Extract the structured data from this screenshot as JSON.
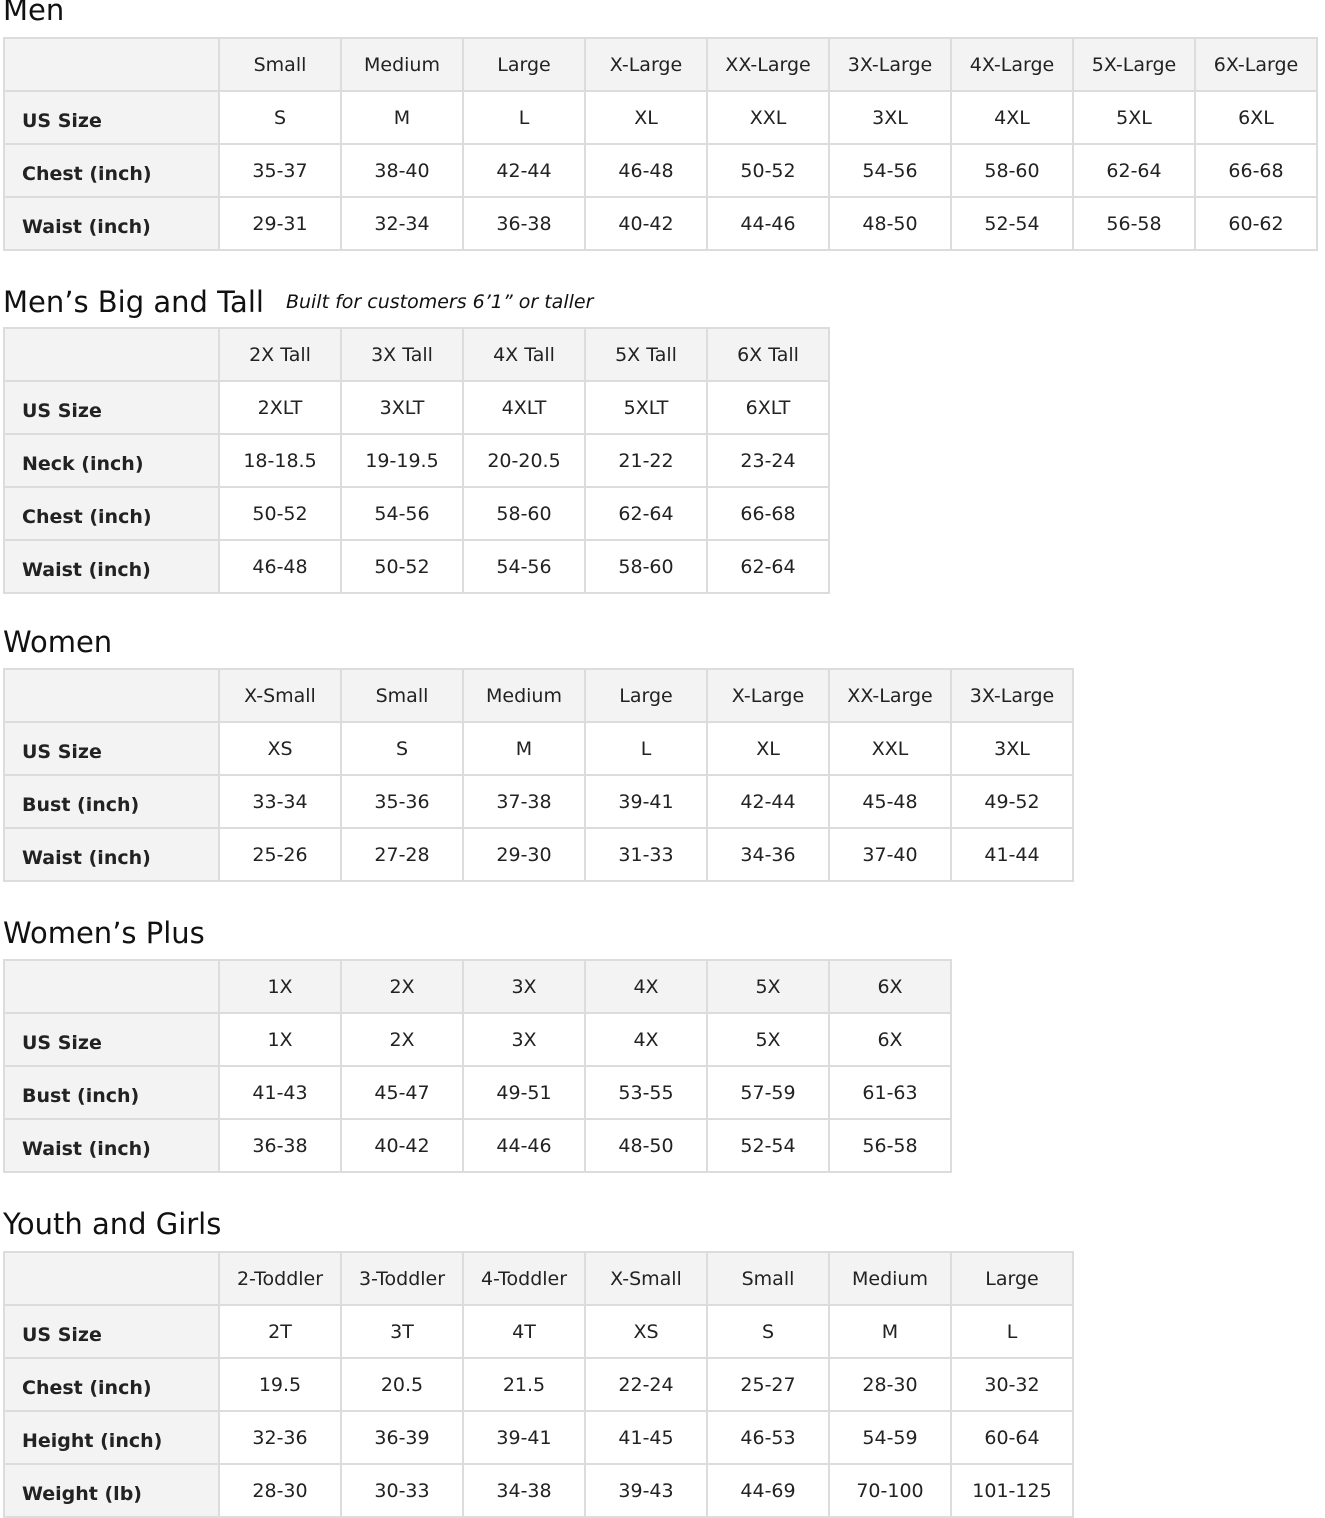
{
  "sections": [
    {
      "id": "men",
      "title": "Men",
      "subtitle": "",
      "columns": [
        "Small",
        "Medium",
        "Large",
        "X-Large",
        "XX-Large",
        "3X-Large",
        "4X-Large",
        "5X-Large",
        "6X-Large"
      ],
      "rows": [
        {
          "label": "US Size",
          "values": [
            "S",
            "M",
            "L",
            "XL",
            "XXL",
            "3XL",
            "4XL",
            "5XL",
            "6XL"
          ]
        },
        {
          "label": "Chest (inch)",
          "values": [
            "35-37",
            "38-40",
            "42-44",
            "46-48",
            "50-52",
            "54-56",
            "58-60",
            "62-64",
            "66-68"
          ]
        },
        {
          "label": "Waist (inch)",
          "values": [
            "29-31",
            "32-34",
            "36-38",
            "40-42",
            "44-46",
            "48-50",
            "52-54",
            "56-58",
            "60-62"
          ]
        }
      ]
    },
    {
      "id": "mens-big-tall",
      "title": "Men’s Big and Tall",
      "subtitle": "Built for customers 6’1” or taller",
      "columns": [
        "2X Tall",
        "3X Tall",
        "4X Tall",
        "5X Tall",
        "6X Tall"
      ],
      "rows": [
        {
          "label": "US Size",
          "values": [
            "2XLT",
            "3XLT",
            "4XLT",
            "5XLT",
            "6XLT"
          ]
        },
        {
          "label": "Neck (inch)",
          "values": [
            "18-18.5",
            "19-19.5",
            "20-20.5",
            "21-22",
            "23-24"
          ]
        },
        {
          "label": "Chest (inch)",
          "values": [
            "50-52",
            "54-56",
            "58-60",
            "62-64",
            "66-68"
          ]
        },
        {
          "label": "Waist (inch)",
          "values": [
            "46-48",
            "50-52",
            "54-56",
            "58-60",
            "62-64"
          ]
        }
      ]
    },
    {
      "id": "women",
      "title": "Women",
      "subtitle": "",
      "columns": [
        "X-Small",
        "Small",
        "Medium",
        "Large",
        "X-Large",
        "XX-Large",
        "3X-Large"
      ],
      "rows": [
        {
          "label": "US Size",
          "values": [
            "XS",
            "S",
            "M",
            "L",
            "XL",
            "XXL",
            "3XL"
          ]
        },
        {
          "label": "Bust (inch)",
          "values": [
            "33-34",
            "35-36",
            "37-38",
            "39-41",
            "42-44",
            "45-48",
            "49-52"
          ]
        },
        {
          "label": "Waist (inch)",
          "values": [
            "25-26",
            "27-28",
            "29-30",
            "31-33",
            "34-36",
            "37-40",
            "41-44"
          ]
        }
      ]
    },
    {
      "id": "womens-plus",
      "title": "Women’s  Plus",
      "subtitle": "",
      "columns": [
        "1X",
        "2X",
        "3X",
        "4X",
        "5X",
        "6X"
      ],
      "rows": [
        {
          "label": "US Size",
          "values": [
            "1X",
            "2X",
            "3X",
            "4X",
            "5X",
            "6X"
          ]
        },
        {
          "label": "Bust (inch)",
          "values": [
            "41-43",
            "45-47",
            "49-51",
            "53-55",
            "57-59",
            "61-63"
          ]
        },
        {
          "label": "Waist (inch)",
          "values": [
            "36-38",
            "40-42",
            "44-46",
            "48-50",
            "52-54",
            "56-58"
          ]
        }
      ]
    },
    {
      "id": "youth-girls",
      "title": "Youth and Girls",
      "subtitle": "",
      "columns": [
        "2-Toddler",
        "3-Toddler",
        "4-Toddler",
        "X-Small",
        "Small",
        "Medium",
        "Large"
      ],
      "rows": [
        {
          "label": "US Size",
          "values": [
            "2T",
            "3T",
            "4T",
            "XS",
            "S",
            "M",
            "L"
          ]
        },
        {
          "label": "Chest (inch)",
          "values": [
            "19.5",
            "20.5",
            "21.5",
            "22-24",
            "25-27",
            "28-30",
            "30-32"
          ]
        },
        {
          "label": "Height (inch)",
          "values": [
            "32-36",
            "36-39",
            "39-41",
            "41-45",
            "46-53",
            "54-59",
            "60-64"
          ]
        },
        {
          "label": "Weight (lb)",
          "values": [
            "28-30",
            "30-33",
            "34-38",
            "39-43",
            "44-69",
            "70-100",
            "101-125"
          ]
        }
      ]
    }
  ]
}
